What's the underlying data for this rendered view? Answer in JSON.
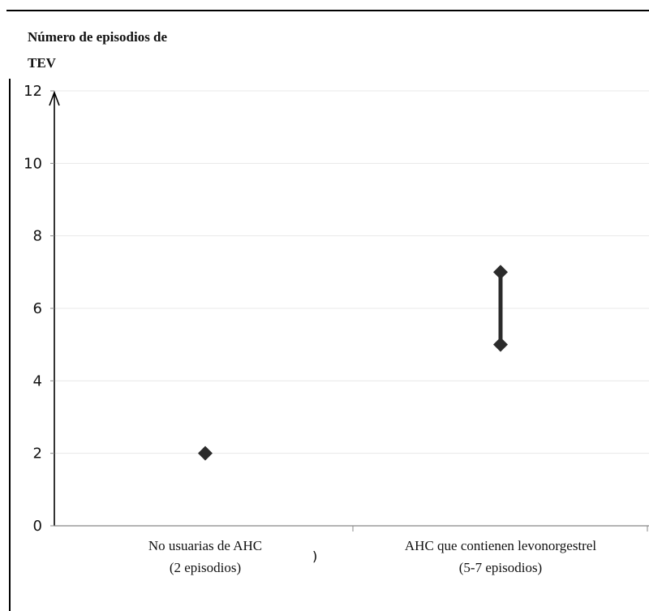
{
  "chart_data": {
    "type": "scatter",
    "title_lines": [
      "Número de episodios de",
      "TEV"
    ],
    "ylabel": "",
    "xlabel": "",
    "ylim": [
      0,
      12
    ],
    "yticks": [
      0,
      2,
      4,
      6,
      8,
      10,
      12
    ],
    "grid": true,
    "categories": [
      {
        "lines": [
          "No usuarias de AHC",
          "(2 episodios)"
        ]
      },
      {
        "lines": [
          "AHC que contienen levonorgestrel",
          "(5-7 episodios)"
        ]
      }
    ],
    "points": [
      {
        "category_index": 0,
        "low": 2,
        "high": 2
      },
      {
        "category_index": 1,
        "low": 5,
        "high": 7
      }
    ],
    "stray_mark": ")",
    "colors": {
      "marker": "#2b2b2b",
      "grid": "#e8e8e8",
      "axis": "#000000"
    }
  }
}
